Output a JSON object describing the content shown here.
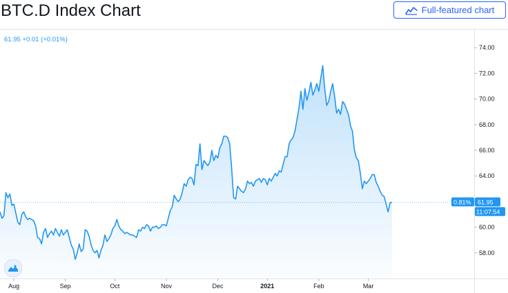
{
  "header": {
    "title": "BTC.D Index Chart",
    "full_chart_label": "Full-featured chart",
    "full_chart_icon": "chart-line-icon"
  },
  "legend": {
    "text": "61.95  +0.01 (+0.01%)"
  },
  "price_scale": {
    "current_change": "0.81%",
    "current_value": "61.95",
    "countdown": "11:07:54"
  },
  "logo": {
    "icon": "tradingview-logo-icon"
  },
  "colors": {
    "line": "#2196f3",
    "area_top": "#2196f3",
    "accent": "#2962ff",
    "tag": "#2196f3"
  },
  "chart_data": {
    "type": "area",
    "title": "BTC.D Index Chart",
    "xlabel": "",
    "ylabel": "",
    "x_ticks": [
      "Aug",
      "Sep",
      "Oct",
      "Nov",
      "Dec",
      "2021",
      "Feb",
      "Mar"
    ],
    "y_ticks": [
      58.0,
      60.0,
      62.0,
      64.0,
      66.0,
      68.0,
      70.0,
      72.0,
      74.0
    ],
    "ylim": [
      56.0,
      75.3
    ],
    "current_value": 61.95,
    "series": [
      {
        "values": [
          61.2,
          60.7,
          60.9,
          62.7,
          62.3,
          62.6,
          61.7,
          61.8,
          61.1,
          60.4,
          60.2,
          61.0,
          61.2,
          60.8,
          60.6,
          60.7,
          60.6,
          60.5,
          60.1,
          59.2,
          59.1,
          58.7,
          59.6,
          59.9,
          59.2,
          59.5,
          59.7,
          59.4,
          59.9,
          59.6,
          59.3,
          59.8,
          59.4,
          59.6,
          59.8,
          59.2,
          58.6,
          58.3,
          57.5,
          58.0,
          58.7,
          58.1,
          58.3,
          59.8,
          59.7,
          59.3,
          58.6,
          58.2,
          58.0,
          58.2,
          57.6,
          58.2,
          58.6,
          59.4,
          58.9,
          59.1,
          59.4,
          59.9,
          60.1,
          60.6,
          60.1,
          59.8,
          59.7,
          59.5,
          59.6,
          59.5,
          59.4,
          59.4,
          59.3,
          59.2,
          59.8,
          59.7,
          60.0,
          59.9,
          60.2,
          60.1,
          59.7,
          60.0,
          60.0,
          60.1,
          59.9,
          60.0,
          60.2,
          60.2,
          60.1,
          60.7,
          61.3,
          61.6,
          62.5,
          62.2,
          62.0,
          62.2,
          62.7,
          63.4,
          63.2,
          63.7,
          63.9,
          63.8,
          63.3,
          64.9,
          64.8,
          66.5,
          64.5,
          65.2,
          65.0,
          64.8,
          65.1,
          66.0,
          65.2,
          65.6,
          65.4,
          66.2,
          66.5,
          67.1,
          67.1,
          67.0,
          66.5,
          64.6,
          62.3,
          62.2,
          63.2,
          63.0,
          62.8,
          62.7,
          63.0,
          63.6,
          63.4,
          63.5,
          63.2,
          63.6,
          63.7,
          63.8,
          63.5,
          63.8,
          63.7,
          63.3,
          63.8,
          63.6,
          63.9,
          64.2,
          64.0,
          64.4,
          64.3,
          64.9,
          65.5,
          65.5,
          66.5,
          66.8,
          67.0,
          67.5,
          68.4,
          69.3,
          70.6,
          69.2,
          70.8,
          69.9,
          70.5,
          71.3,
          70.3,
          70.7,
          71.2,
          70.6,
          71.6,
          72.6,
          70.8,
          69.5,
          69.8,
          70.6,
          71.2,
          70.2,
          68.9,
          69.2,
          68.8,
          69.8,
          69.6,
          69.2,
          68.8,
          67.9,
          67.5,
          66.0,
          65.4,
          65.2,
          64.2,
          63.0,
          63.6,
          63.4,
          63.6,
          63.8,
          64.1,
          64.1,
          63.5,
          63.2,
          62.8,
          62.5,
          62.4,
          61.8,
          61.2,
          61.9,
          61.95
        ]
      }
    ]
  }
}
